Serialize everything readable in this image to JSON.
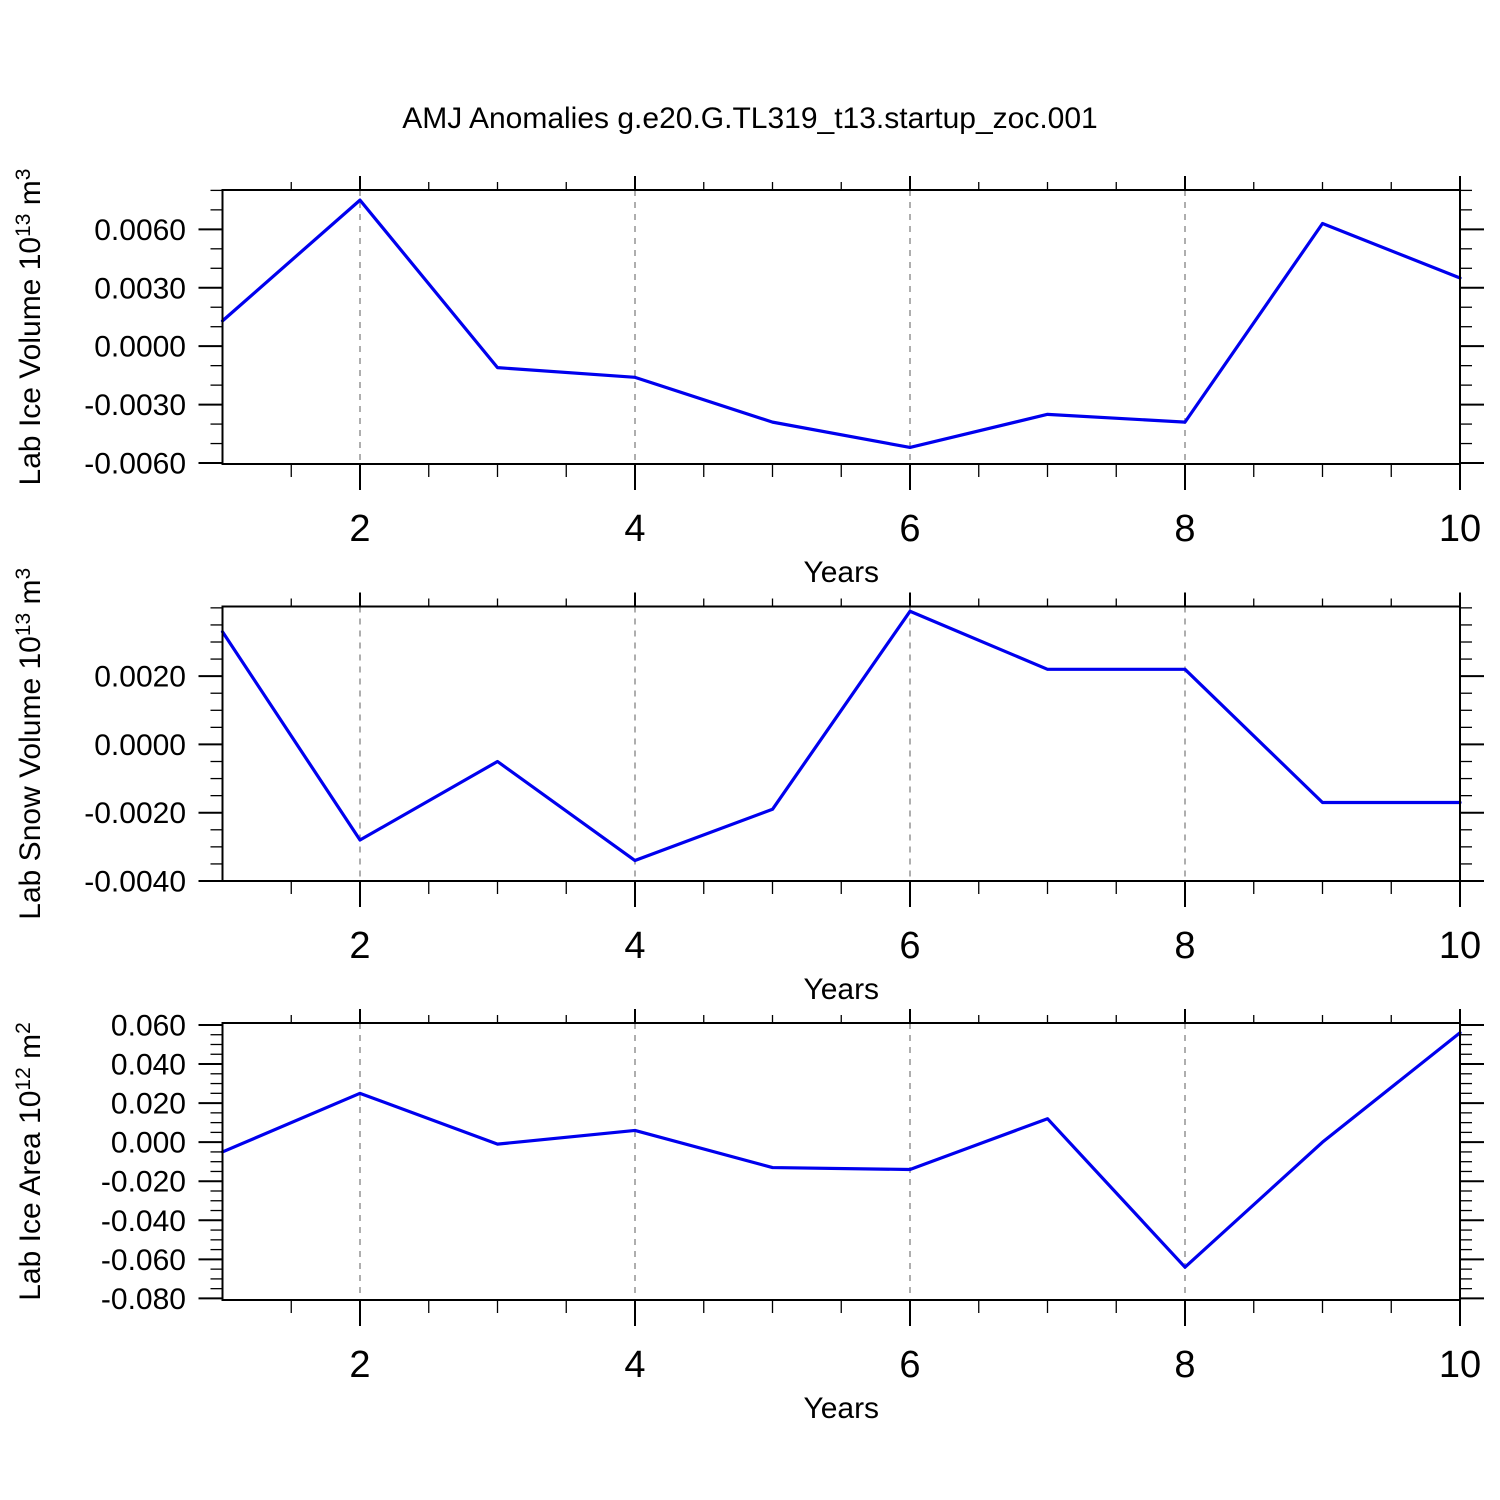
{
  "title": "AMJ Anomalies g.e20.G.TL319_t13.startup_zoc.001",
  "colors": {
    "line": "#0000ee",
    "grid": "#a5a5a5",
    "axis": "#000000",
    "text": "#000000",
    "background": "#ffffff"
  },
  "x_axis": {
    "label": "Years",
    "range": [
      1,
      10
    ],
    "major_tick_values": [
      2,
      4,
      6,
      8,
      10
    ],
    "major_tick_labels": [
      "2",
      "4",
      "6",
      "8",
      "10"
    ],
    "minor_step": 0.5,
    "grid_line_years": [
      2,
      4,
      6,
      8
    ]
  },
  "panels": [
    {
      "id": "lab-ice-volume",
      "y_title_parts": [
        {
          "t": "Lab Ice Volume 10",
          "sup": false
        },
        {
          "t": "13",
          "sup": true
        },
        {
          "t": " m",
          "sup": false
        },
        {
          "t": "3",
          "sup": true
        }
      ],
      "ylim": [
        -0.00605,
        0.00802
      ],
      "y_major_ticks": [
        {
          "v": 0.006,
          "label": "0.0060"
        },
        {
          "v": 0.003,
          "label": "0.0030"
        },
        {
          "v": 0.0,
          "label": "0.0000"
        },
        {
          "v": -0.003,
          "label": "-0.0030"
        },
        {
          "v": -0.006,
          "label": "-0.0060"
        }
      ],
      "y_minor_step": 0.001
    },
    {
      "id": "lab-snow-volume",
      "y_title_parts": [
        {
          "t": "Lab Snow Volume 10",
          "sup": false
        },
        {
          "t": "13",
          "sup": true
        },
        {
          "t": " m",
          "sup": false
        },
        {
          "t": "3",
          "sup": true
        }
      ],
      "ylim": [
        -0.004,
        0.00404
      ],
      "y_major_ticks": [
        {
          "v": 0.002,
          "label": "0.0020"
        },
        {
          "v": 0.0,
          "label": "0.0000"
        },
        {
          "v": -0.002,
          "label": "-0.0020"
        },
        {
          "v": -0.004,
          "label": "-0.0040"
        }
      ],
      "y_minor_step": 0.0005
    },
    {
      "id": "lab-ice-area",
      "y_title_parts": [
        {
          "t": "Lab Ice Area 10",
          "sup": false
        },
        {
          "t": "12",
          "sup": true
        },
        {
          "t": " m",
          "sup": false
        },
        {
          "t": "2",
          "sup": true
        }
      ],
      "ylim": [
        -0.0808,
        0.061
      ],
      "y_major_ticks": [
        {
          "v": 0.06,
          "label": "0.060"
        },
        {
          "v": 0.04,
          "label": "0.040"
        },
        {
          "v": 0.02,
          "label": "0.020"
        },
        {
          "v": 0.0,
          "label": "0.000"
        },
        {
          "v": -0.02,
          "label": "-0.020"
        },
        {
          "v": -0.04,
          "label": "-0.040"
        },
        {
          "v": -0.06,
          "label": "-0.060"
        },
        {
          "v": -0.08,
          "label": "-0.080"
        }
      ],
      "y_minor_step": 0.005
    }
  ],
  "chart_data": {
    "type": "line",
    "title": "AMJ Anomalies g.e20.G.TL319_t13.startup_zoc.001",
    "x": [
      1,
      2,
      3,
      4,
      5,
      6,
      7,
      8,
      9,
      10
    ],
    "xlabel": "Years",
    "grid": {
      "vertical_dashed_at": [
        2,
        4,
        6,
        8
      ]
    },
    "legend": "none",
    "line_color": "#0000ee",
    "series": [
      {
        "name": "Lab Ice Volume 10^13 m^3",
        "ylim": [
          -0.006,
          0.008
        ],
        "values": [
          0.0013,
          0.0075,
          -0.0011,
          -0.0016,
          -0.0039,
          -0.0052,
          -0.0035,
          -0.0039,
          0.0063,
          0.0035
        ]
      },
      {
        "name": "Lab Snow Volume 10^13 m^3",
        "ylim": [
          -0.004,
          0.004
        ],
        "values": [
          0.0033,
          -0.0028,
          -0.0005,
          -0.0034,
          -0.0019,
          0.0039,
          0.0022,
          0.0022,
          -0.0017,
          -0.0017
        ]
      },
      {
        "name": "Lab Ice Area 10^12 m^2",
        "ylim": [
          -0.081,
          0.061
        ],
        "values": [
          -0.005,
          0.025,
          -0.001,
          0.006,
          -0.013,
          -0.014,
          0.012,
          -0.064,
          0.0,
          0.056
        ]
      }
    ]
  }
}
